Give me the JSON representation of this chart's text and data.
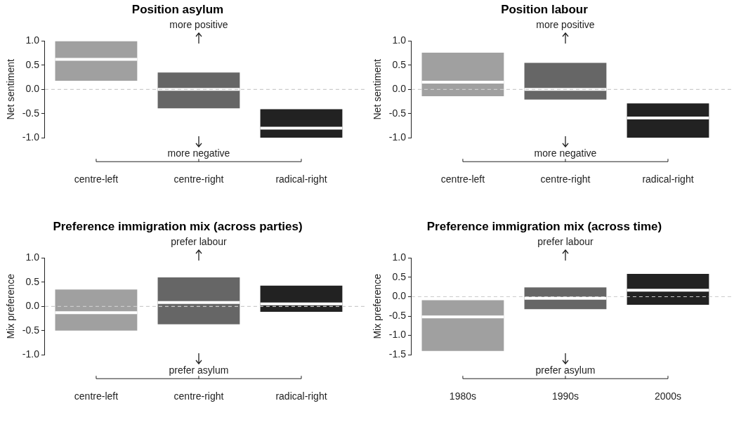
{
  "chart_data": [
    {
      "type": "box",
      "title": "Position asylum",
      "ylabel": "Net sentiment",
      "categories": [
        "centre-left",
        "centre-right",
        "radical-right"
      ],
      "boxes": [
        {
          "low": 0.18,
          "q1": 0.18,
          "median": 0.62,
          "q3": 1.0,
          "high": 1.0
        },
        {
          "low": -0.39,
          "q1": -0.39,
          "median": 0.0,
          "q3": 0.35,
          "high": 0.35
        },
        {
          "low": -1.0,
          "q1": -1.0,
          "median": -0.8,
          "q3": -0.41,
          "high": -0.41
        }
      ],
      "colors": [
        "#a0a0a0",
        "#666666",
        "#222222"
      ],
      "ylim": [
        -1,
        1
      ],
      "yticks": [
        {
          "value": -1,
          "label": "-1.0"
        },
        -0.5,
        {
          "value": 0,
          "label": "0.0"
        },
        0.5,
        {
          "value": 1,
          "label": "1.0"
        }
      ],
      "ref_lines": [
        {
          "axis": "y",
          "value": 0,
          "color": "#cccccc",
          "line_style": "dashed"
        }
      ],
      "annotations": [
        "more positive",
        "more negative"
      ]
    },
    {
      "type": "box",
      "title": "Position labour",
      "ylabel": "Net sentiment",
      "categories": [
        "centre-left",
        "centre-right",
        "radical-right"
      ],
      "boxes": [
        {
          "low": -0.14,
          "q1": -0.14,
          "median": 0.15,
          "q3": 0.76,
          "high": 0.76
        },
        {
          "low": -0.21,
          "q1": -0.21,
          "median": 0.0,
          "q3": 0.55,
          "high": 0.55
        },
        {
          "low": -1.0,
          "q1": -1.0,
          "median": -0.59,
          "q3": -0.29,
          "high": -0.29
        }
      ],
      "colors": [
        "#a0a0a0",
        "#666666",
        "#222222"
      ],
      "ylim": [
        -1,
        1
      ],
      "yticks": [
        {
          "value": -1,
          "label": "-1.0"
        },
        -0.5,
        {
          "value": 0,
          "label": "0.0"
        },
        0.5,
        {
          "value": 1,
          "label": "1.0"
        }
      ],
      "ref_lines": [
        {
          "axis": "y",
          "value": 0,
          "color": "#cccccc",
          "line_style": "dashed"
        }
      ],
      "annotations": [
        "more positive",
        "more negative"
      ]
    },
    {
      "type": "box",
      "title": "Preference immigration mix (across parties)",
      "ylabel": "Mix preference",
      "categories": [
        "centre-left",
        "centre-right",
        "radical-right"
      ],
      "boxes": [
        {
          "low": -0.5,
          "q1": -0.5,
          "median": -0.13,
          "q3": 0.35,
          "high": 0.35
        },
        {
          "low": -0.37,
          "q1": -0.37,
          "median": 0.08,
          "q3": 0.6,
          "high": 0.6
        },
        {
          "low": -0.11,
          "q1": -0.11,
          "median": 0.05,
          "q3": 0.43,
          "high": 0.43
        }
      ],
      "colors": [
        "#a0a0a0",
        "#666666",
        "#222222"
      ],
      "ylim": [
        -1,
        1
      ],
      "yticks": [
        {
          "value": -1,
          "label": "-1.0"
        },
        -0.5,
        {
          "value": 0,
          "label": "0.0"
        },
        0.5,
        {
          "value": 1,
          "label": "1.0"
        }
      ],
      "ref_lines": [
        {
          "axis": "y",
          "value": 0,
          "color": "#cccccc",
          "line_style": "dashed"
        }
      ],
      "annotations": [
        "prefer labour",
        "prefer asylum"
      ]
    },
    {
      "type": "box",
      "title": "Preference immigration mix (across time)",
      "ylabel": "Mix preference",
      "categories": [
        "1980s",
        "1990s",
        "2000s"
      ],
      "boxes": [
        {
          "low": -1.4,
          "q1": -1.4,
          "median": -0.52,
          "q3": -0.09,
          "high": -0.09
        },
        {
          "low": -0.32,
          "q1": -0.32,
          "median": -0.04,
          "q3": 0.24,
          "high": 0.24
        },
        {
          "low": -0.21,
          "q1": -0.21,
          "median": 0.17,
          "q3": 0.59,
          "high": 0.59
        }
      ],
      "colors": [
        "#a0a0a0",
        "#666666",
        "#222222"
      ],
      "ylim": [
        -1.5,
        1
      ],
      "yticks": [
        -1.5,
        {
          "value": -1,
          "label": "-1.0"
        },
        -0.5,
        {
          "value": 0,
          "label": "0.0"
        },
        0.5,
        {
          "value": 1,
          "label": "1.0"
        }
      ],
      "ref_lines": [
        {
          "axis": "y",
          "value": 0,
          "color": "#cccccc",
          "line_style": "dashed"
        }
      ],
      "annotations": [
        "prefer labour",
        "prefer asylum"
      ]
    }
  ]
}
